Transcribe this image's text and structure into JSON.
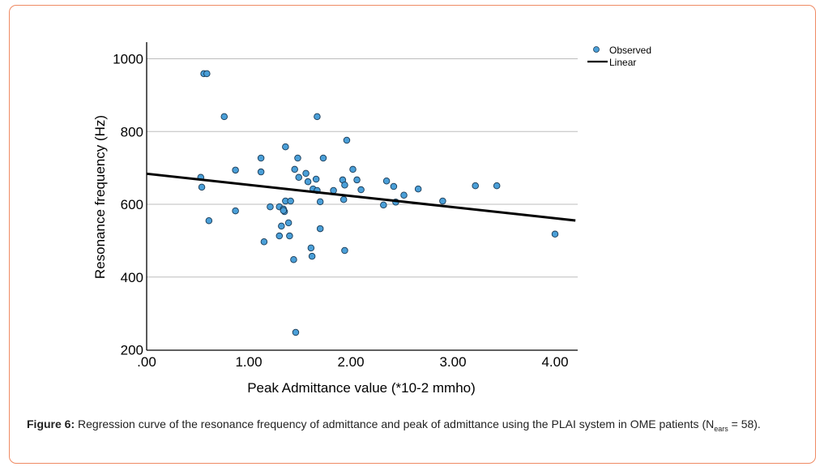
{
  "chart_data": {
    "type": "scatter",
    "title": "",
    "xlabel": "Peak Admittance value (*10-2 mmho)",
    "ylabel": "Resonance frequency (Hz)",
    "xlim": [
      0,
      4.2
    ],
    "ylim": [
      200,
      1040
    ],
    "x_ticks": [
      0,
      1,
      2,
      3,
      4
    ],
    "x_tick_labels": [
      ".00",
      "1.00",
      "2.00",
      "3.00",
      "4.00"
    ],
    "y_ticks": [
      200,
      400,
      600,
      800,
      1000
    ],
    "y_tick_labels": [
      "200",
      "400",
      "600",
      "800",
      "1000"
    ],
    "grid": "horizontal",
    "legend": {
      "placement": "top-right",
      "entries": [
        {
          "label": "Observed",
          "type": "marker",
          "color": "#4a9fd8"
        },
        {
          "label": "Linear",
          "type": "line",
          "color": "#000000"
        }
      ]
    },
    "series": [
      {
        "name": "Observed",
        "color": "#4a9fd8",
        "points": [
          [
            0.56,
            959
          ],
          [
            0.59,
            959
          ],
          [
            0.76,
            841
          ],
          [
            1.67,
            841
          ],
          [
            1.96,
            776
          ],
          [
            1.36,
            758
          ],
          [
            1.12,
            727
          ],
          [
            1.48,
            727
          ],
          [
            1.73,
            727
          ],
          [
            0.87,
            694
          ],
          [
            1.45,
            696
          ],
          [
            2.02,
            696
          ],
          [
            1.12,
            689
          ],
          [
            1.56,
            685
          ],
          [
            0.53,
            674
          ],
          [
            1.49,
            674
          ],
          [
            1.58,
            662
          ],
          [
            1.66,
            669
          ],
          [
            1.92,
            667
          ],
          [
            2.06,
            667
          ],
          [
            2.35,
            664
          ],
          [
            1.94,
            653
          ],
          [
            3.22,
            651
          ],
          [
            3.43,
            651
          ],
          [
            0.54,
            647
          ],
          [
            2.42,
            649
          ],
          [
            2.66,
            642
          ],
          [
            1.63,
            642
          ],
          [
            1.67,
            638
          ],
          [
            1.83,
            638
          ],
          [
            2.1,
            640
          ],
          [
            2.52,
            625
          ],
          [
            1.93,
            613
          ],
          [
            1.36,
            609
          ],
          [
            1.41,
            609
          ],
          [
            1.7,
            607
          ],
          [
            2.9,
            609
          ],
          [
            2.44,
            606
          ],
          [
            2.32,
            598
          ],
          [
            1.21,
            593
          ],
          [
            1.3,
            593
          ],
          [
            1.34,
            587
          ],
          [
            1.35,
            580
          ],
          [
            0.87,
            582
          ],
          [
            0.61,
            555
          ],
          [
            1.39,
            549
          ],
          [
            1.32,
            540
          ],
          [
            1.7,
            533
          ],
          [
            4.0,
            518
          ],
          [
            1.3,
            513
          ],
          [
            1.4,
            513
          ],
          [
            1.15,
            497
          ],
          [
            1.61,
            480
          ],
          [
            1.62,
            457
          ],
          [
            1.94,
            473
          ],
          [
            1.44,
            448
          ],
          [
            1.46,
            248
          ],
          [
            1.34,
            583
          ]
        ]
      },
      {
        "name": "Linear",
        "type": "line",
        "color": "#000000",
        "intercept": 684,
        "slope": -30.6
      }
    ]
  },
  "caption": {
    "label": "Figure 6:",
    "text": " Regression curve of the resonance frequency of admittance and peak of admittance using the PLAI system in OME patients (N",
    "subscript": "ears",
    "text_end": " = 58)."
  }
}
